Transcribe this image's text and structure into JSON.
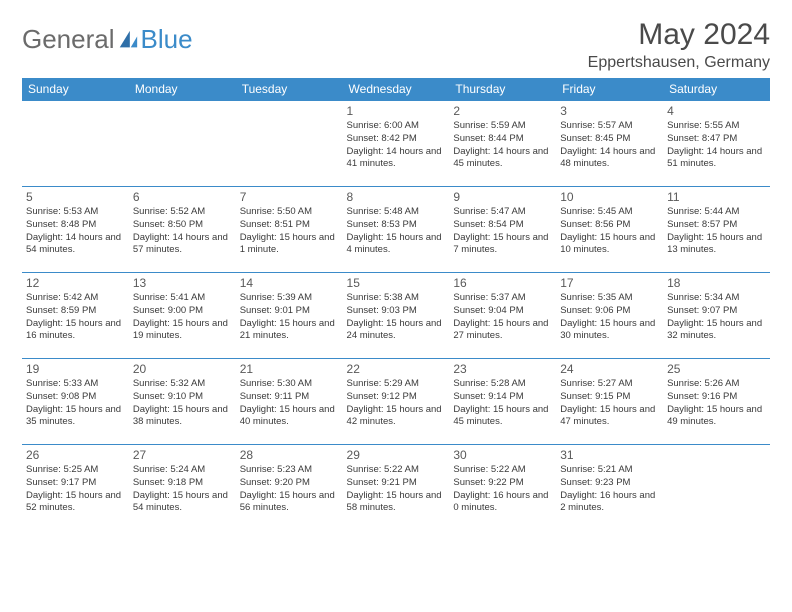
{
  "brand": {
    "part1": "General",
    "part2": "Blue"
  },
  "title": "May 2024",
  "location": "Eppertshausen, Germany",
  "colors": {
    "accent": "#3b8bc9",
    "text_gray": "#6b6b6b",
    "header_bg": "#3b8bc9",
    "body_text": "#3a3a3a"
  },
  "day_headers": [
    "Sunday",
    "Monday",
    "Tuesday",
    "Wednesday",
    "Thursday",
    "Friday",
    "Saturday"
  ],
  "weeks": [
    [
      null,
      null,
      null,
      {
        "n": "1",
        "sr": "6:00 AM",
        "ss": "8:42 PM",
        "dl": "14 hours and 41 minutes."
      },
      {
        "n": "2",
        "sr": "5:59 AM",
        "ss": "8:44 PM",
        "dl": "14 hours and 45 minutes."
      },
      {
        "n": "3",
        "sr": "5:57 AM",
        "ss": "8:45 PM",
        "dl": "14 hours and 48 minutes."
      },
      {
        "n": "4",
        "sr": "5:55 AM",
        "ss": "8:47 PM",
        "dl": "14 hours and 51 minutes."
      }
    ],
    [
      {
        "n": "5",
        "sr": "5:53 AM",
        "ss": "8:48 PM",
        "dl": "14 hours and 54 minutes."
      },
      {
        "n": "6",
        "sr": "5:52 AM",
        "ss": "8:50 PM",
        "dl": "14 hours and 57 minutes."
      },
      {
        "n": "7",
        "sr": "5:50 AM",
        "ss": "8:51 PM",
        "dl": "15 hours and 1 minute."
      },
      {
        "n": "8",
        "sr": "5:48 AM",
        "ss": "8:53 PM",
        "dl": "15 hours and 4 minutes."
      },
      {
        "n": "9",
        "sr": "5:47 AM",
        "ss": "8:54 PM",
        "dl": "15 hours and 7 minutes."
      },
      {
        "n": "10",
        "sr": "5:45 AM",
        "ss": "8:56 PM",
        "dl": "15 hours and 10 minutes."
      },
      {
        "n": "11",
        "sr": "5:44 AM",
        "ss": "8:57 PM",
        "dl": "15 hours and 13 minutes."
      }
    ],
    [
      {
        "n": "12",
        "sr": "5:42 AM",
        "ss": "8:59 PM",
        "dl": "15 hours and 16 minutes."
      },
      {
        "n": "13",
        "sr": "5:41 AM",
        "ss": "9:00 PM",
        "dl": "15 hours and 19 minutes."
      },
      {
        "n": "14",
        "sr": "5:39 AM",
        "ss": "9:01 PM",
        "dl": "15 hours and 21 minutes."
      },
      {
        "n": "15",
        "sr": "5:38 AM",
        "ss": "9:03 PM",
        "dl": "15 hours and 24 minutes."
      },
      {
        "n": "16",
        "sr": "5:37 AM",
        "ss": "9:04 PM",
        "dl": "15 hours and 27 minutes."
      },
      {
        "n": "17",
        "sr": "5:35 AM",
        "ss": "9:06 PM",
        "dl": "15 hours and 30 minutes."
      },
      {
        "n": "18",
        "sr": "5:34 AM",
        "ss": "9:07 PM",
        "dl": "15 hours and 32 minutes."
      }
    ],
    [
      {
        "n": "19",
        "sr": "5:33 AM",
        "ss": "9:08 PM",
        "dl": "15 hours and 35 minutes."
      },
      {
        "n": "20",
        "sr": "5:32 AM",
        "ss": "9:10 PM",
        "dl": "15 hours and 38 minutes."
      },
      {
        "n": "21",
        "sr": "5:30 AM",
        "ss": "9:11 PM",
        "dl": "15 hours and 40 minutes."
      },
      {
        "n": "22",
        "sr": "5:29 AM",
        "ss": "9:12 PM",
        "dl": "15 hours and 42 minutes."
      },
      {
        "n": "23",
        "sr": "5:28 AM",
        "ss": "9:14 PM",
        "dl": "15 hours and 45 minutes."
      },
      {
        "n": "24",
        "sr": "5:27 AM",
        "ss": "9:15 PM",
        "dl": "15 hours and 47 minutes."
      },
      {
        "n": "25",
        "sr": "5:26 AM",
        "ss": "9:16 PM",
        "dl": "15 hours and 49 minutes."
      }
    ],
    [
      {
        "n": "26",
        "sr": "5:25 AM",
        "ss": "9:17 PM",
        "dl": "15 hours and 52 minutes."
      },
      {
        "n": "27",
        "sr": "5:24 AM",
        "ss": "9:18 PM",
        "dl": "15 hours and 54 minutes."
      },
      {
        "n": "28",
        "sr": "5:23 AM",
        "ss": "9:20 PM",
        "dl": "15 hours and 56 minutes."
      },
      {
        "n": "29",
        "sr": "5:22 AM",
        "ss": "9:21 PM",
        "dl": "15 hours and 58 minutes."
      },
      {
        "n": "30",
        "sr": "5:22 AM",
        "ss": "9:22 PM",
        "dl": "16 hours and 0 minutes."
      },
      {
        "n": "31",
        "sr": "5:21 AM",
        "ss": "9:23 PM",
        "dl": "16 hours and 2 minutes."
      },
      null
    ]
  ],
  "labels": {
    "sunrise": "Sunrise:",
    "sunset": "Sunset:",
    "daylight": "Daylight:"
  }
}
